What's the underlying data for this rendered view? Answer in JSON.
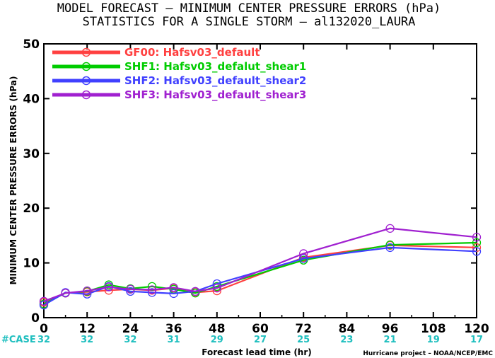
{
  "chart_data": {
    "type": "line",
    "title": "MODEL FORECAST – MINIMUM CENTER PRESSURE ERRORS (hPa)",
    "subtitle": "STATISTICS FOR A SINGLE STORM – al132020_LAURA",
    "xlabel": "Forecast lead time (hr)",
    "ylabel": "MINIMUM CENTER PRESSURE ERRORS (hPa)",
    "xlim": [
      0,
      120
    ],
    "ylim": [
      0,
      50
    ],
    "x_ticks": [
      "0",
      "12",
      "24",
      "36",
      "48",
      "60",
      "72",
      "84",
      "96",
      "108",
      "120"
    ],
    "y_ticks": [
      "0",
      "10",
      "20",
      "30",
      "40",
      "50"
    ],
    "case_label": "#CASE",
    "cases": [
      "32",
      "32",
      "32",
      "31",
      "29",
      "27",
      "25",
      "23",
      "21",
      "19",
      "17"
    ],
    "credit": "Hurricane project – NOAA/NCEP/EMC",
    "legend_position": "top-left",
    "series": [
      {
        "name": "GF00: Hafsv03_default",
        "color": "#ff4040",
        "x": [
          0,
          6,
          12,
          18,
          24,
          30,
          36,
          42,
          48,
          72,
          96,
          120
        ],
        "y": [
          2.8,
          4.5,
          4.7,
          5.0,
          5.2,
          5.0,
          5.4,
          4.6,
          4.9,
          11.0,
          13.2,
          12.8
        ]
      },
      {
        "name": "SHF1: Hafsv03_defalut_shear1",
        "color": "#00cc00",
        "x": [
          0,
          6,
          12,
          18,
          24,
          30,
          36,
          42,
          48,
          72,
          96,
          120
        ],
        "y": [
          2.5,
          4.5,
          4.8,
          6.0,
          5.3,
          5.7,
          5.2,
          4.5,
          5.7,
          10.5,
          13.3,
          13.7
        ]
      },
      {
        "name": "SHF2: Hafsv03_default_shear2",
        "color": "#4040ff",
        "x": [
          0,
          6,
          12,
          18,
          24,
          30,
          36,
          42,
          48,
          72,
          96,
          120
        ],
        "y": [
          2.3,
          4.6,
          4.3,
          5.7,
          4.8,
          4.6,
          4.4,
          4.8,
          6.2,
          10.8,
          12.8,
          12.1
        ]
      },
      {
        "name": "SHF3: Hafsv03_default_shear3",
        "color": "#a020d0",
        "x": [
          0,
          6,
          12,
          18,
          24,
          30,
          36,
          42,
          48,
          72,
          96,
          120
        ],
        "y": [
          3.0,
          4.5,
          4.9,
          5.6,
          5.2,
          5.1,
          5.5,
          4.8,
          5.4,
          11.7,
          16.3,
          14.7
        ]
      }
    ]
  }
}
